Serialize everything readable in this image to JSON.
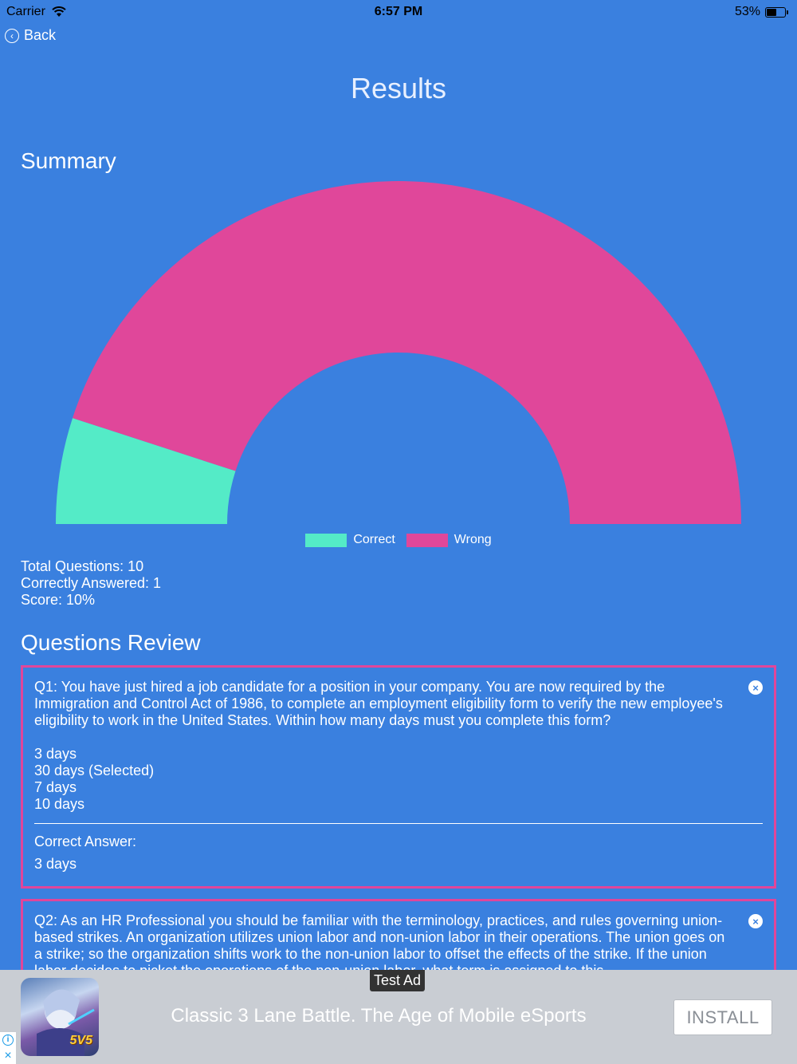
{
  "status_bar": {
    "carrier": "Carrier",
    "time": "6:57 PM",
    "battery": "53%",
    "battery_level": 0.53
  },
  "nav": {
    "back_label": "Back"
  },
  "page_title": "Results",
  "summary": {
    "title": "Summary",
    "total_questions": "Total Questions: 10",
    "correctly_answered": "Correctly Answered: 1",
    "score": "Score: 10%"
  },
  "chart_data": {
    "type": "pie",
    "style": "half-doughnut",
    "categories": [
      "Correct",
      "Wrong"
    ],
    "values": [
      1,
      9
    ],
    "colors": [
      "#54ebc7",
      "#e0479a"
    ],
    "legend": "bottom",
    "title": ""
  },
  "review": {
    "title": "Questions Review",
    "questions": [
      {
        "question": "Q1: You have just hired a job candidate for a position in your company. You are now required by the Immigration and Control Act of 1986, to complete an employment eligibility form to verify the new employee's eligibility to work in the United States. Within how many days must you complete this form?",
        "options": [
          "3 days",
          "30 days (Selected)",
          "7 days",
          "10 days"
        ],
        "correct_label": "Correct Answer:",
        "correct_answer": "3 days"
      },
      {
        "question": "Q2: As an HR Professional you should be familiar with the terminology, practices, and rules governing union-based strikes. An organization utilizes union labor and non-union labor in their operations. The union goes on a strike; so the organization shifts work to the non-union labor to offset the effects of the strike. If the union labor decides to picket the operations of the non-union labor, what term is assigned to this"
      }
    ]
  },
  "ad": {
    "tag": "Test Ad",
    "headline": "Classic 3 Lane Battle. The Age of Mobile eSports",
    "install_label": "INSTALL",
    "icon_badge": "5V5"
  },
  "colors": {
    "background": "#3a80df",
    "card_border": "#e0469a"
  }
}
